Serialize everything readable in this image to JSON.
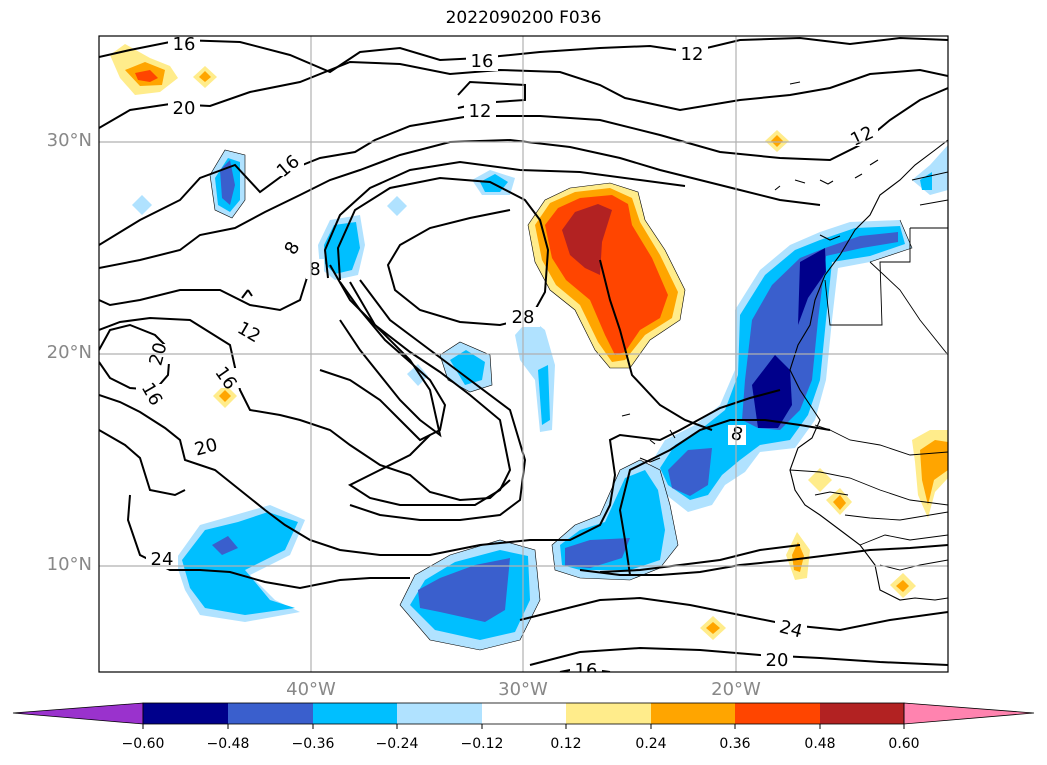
{
  "figure": {
    "title": "2022090200 F036",
    "lat_labels": [
      "30°N",
      "20°N",
      "10°N"
    ],
    "lon_labels": [
      "40°W",
      "30°W",
      "20°W"
    ]
  },
  "contours": {
    "labels": [
      "16",
      "16",
      "12",
      "20",
      "12",
      "12",
      "16",
      "8",
      "8",
      "28",
      "12",
      "20",
      "16",
      "16",
      "20",
      "24",
      "8",
      "24",
      "20",
      "16"
    ]
  },
  "colorbar": {
    "ticks": [
      "−0.60",
      "−0.48",
      "−0.36",
      "−0.24",
      "−0.12",
      "0.12",
      "0.24",
      "0.36",
      "0.48",
      "0.60"
    ],
    "colors": [
      "#9a32cd",
      "#00008b",
      "#3a5fcd",
      "#00bfff",
      "#b0e2ff",
      "#ffffff",
      "#ffec8b",
      "#ffa500",
      "#ff4500",
      "#b22222",
      "#ff83af"
    ]
  }
}
